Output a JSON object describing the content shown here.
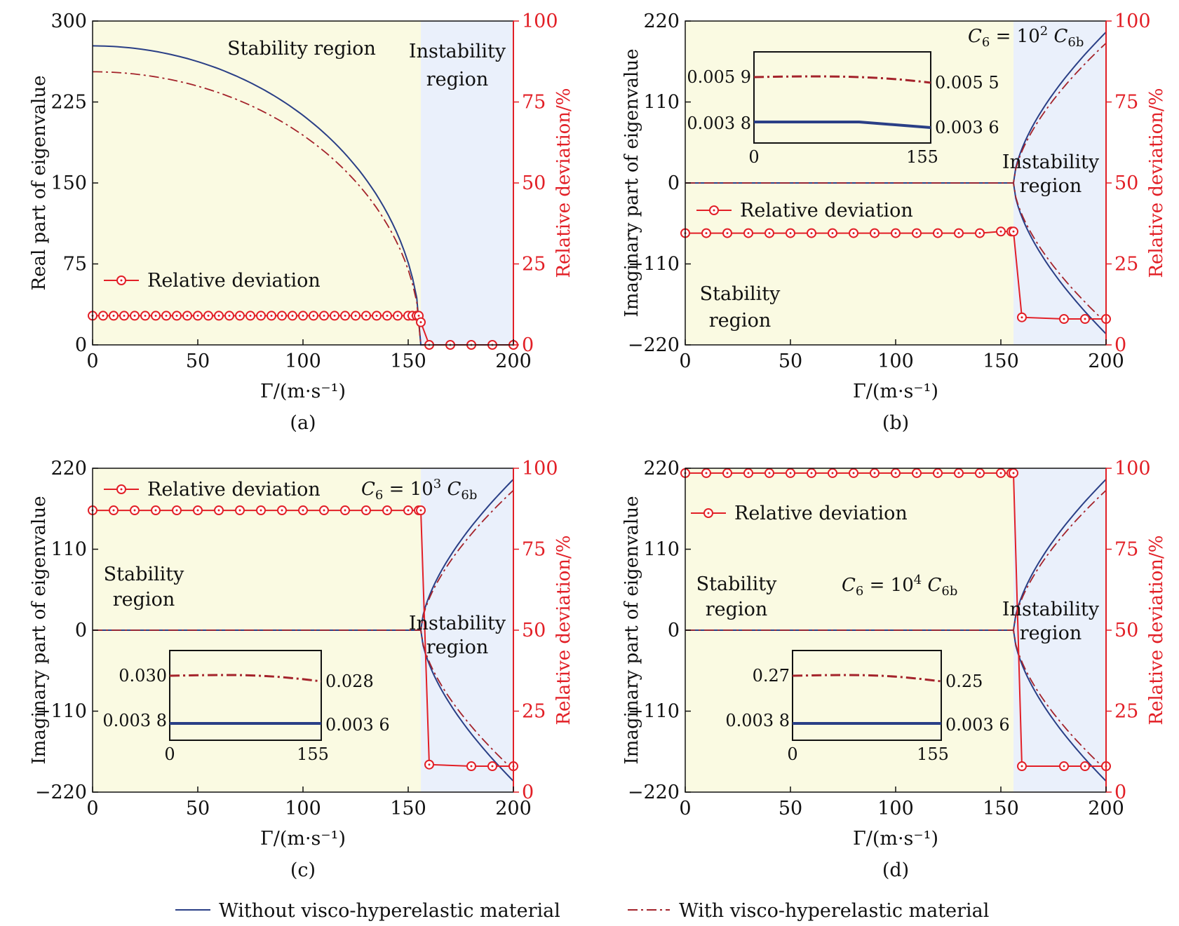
{
  "colors": {
    "stable_bg": "#fafae2",
    "unstable_bg": "#eaf0fb",
    "without": "#2a3f86",
    "with": "#a4232b",
    "deviation": "#e21f26",
    "axis": "#111111"
  },
  "legend": {
    "without_label": "Without visco-hyperelastic material",
    "with_label": "With visco-hyperelastic material"
  },
  "chart_data": [
    {
      "id": "a",
      "type": "line",
      "caption": "(a)",
      "xlabel": "Γ/(m·s⁻¹)",
      "ylabel": "Real part of eigenvalue",
      "ylabel_right": "Relative deviation/%",
      "xlim": [
        0,
        200
      ],
      "ylim": [
        0,
        300
      ],
      "y2lim": [
        0,
        100
      ],
      "xticks": [
        0,
        50,
        100,
        150,
        200
      ],
      "yticks": [
        0,
        75,
        150,
        225,
        300
      ],
      "y2ticks": [
        0,
        25,
        50,
        75,
        100
      ],
      "critical_x": 156,
      "curve_kind": "real",
      "without_peak": 277,
      "with_peak": 253,
      "deviation": {
        "name": "Relative deviation",
        "x": [
          0,
          5,
          10,
          15,
          20,
          25,
          30,
          35,
          40,
          45,
          50,
          55,
          60,
          65,
          70,
          75,
          80,
          85,
          90,
          95,
          100,
          105,
          110,
          115,
          120,
          125,
          130,
          135,
          140,
          145,
          150,
          152,
          154,
          155,
          156,
          160,
          170,
          180,
          190,
          200
        ],
        "y": [
          9,
          9,
          9,
          9,
          9,
          9,
          9,
          9,
          9,
          9,
          9,
          9,
          9,
          9,
          9,
          9,
          9,
          9,
          9,
          9,
          9,
          9,
          9,
          9,
          9,
          9,
          9,
          9,
          9,
          9,
          9,
          9,
          9,
          9,
          7,
          0,
          0,
          0,
          0,
          0
        ]
      },
      "labels": [
        {
          "text": "Stability region"
        },
        {
          "text": "Instability"
        },
        {
          "text": "region"
        }
      ],
      "legend_label": "Relative deviation",
      "legend_pos": "left-middle"
    },
    {
      "id": "b",
      "type": "line",
      "caption": "(b)",
      "xlabel": "Γ/(m·s⁻¹)",
      "ylabel": "Imaginary part of eigenvalue",
      "ylabel_right": "Relative deviation/%",
      "xlim": [
        0,
        200
      ],
      "ylim": [
        -220,
        220
      ],
      "y2lim": [
        0,
        100
      ],
      "xticks": [
        0,
        50,
        100,
        150,
        200
      ],
      "yticks": [
        -220,
        -110,
        0,
        110,
        220
      ],
      "y2ticks": [
        0,
        25,
        50,
        75,
        100
      ],
      "critical_x": 156,
      "curve_kind": "imag",
      "without_end": 205,
      "with_end": 190,
      "annotation": {
        "base": "C",
        "sub": "6",
        "eq": " = 10",
        "sup": "2",
        "base2": " C",
        "sub2": "6b"
      },
      "deviation": {
        "name": "Relative deviation",
        "x": [
          0,
          10,
          20,
          30,
          40,
          50,
          60,
          70,
          80,
          90,
          100,
          110,
          120,
          130,
          140,
          150,
          155,
          156,
          160,
          180,
          190,
          200
        ],
        "y": [
          34.5,
          34.5,
          34.5,
          34.5,
          34.5,
          34.5,
          34.5,
          34.5,
          34.5,
          34.5,
          34.5,
          34.5,
          34.5,
          34.5,
          34.5,
          35,
          35,
          35,
          8.5,
          8,
          8,
          8
        ]
      },
      "labels": [
        {
          "text": "Stability"
        },
        {
          "text": "region"
        },
        {
          "text": "Instability"
        },
        {
          "text": "region"
        }
      ],
      "legend_label": "Relative deviation",
      "legend_pos": "left-middle",
      "inset": {
        "x_ticks": [
          "0",
          "155"
        ],
        "with_left": "0.005 9",
        "with_right": "0.005 5",
        "without_left": "0.003 8",
        "without_right": "0.003 6"
      }
    },
    {
      "id": "c",
      "type": "line",
      "caption": "(c)",
      "xlabel": "Γ/(m·s⁻¹)",
      "ylabel": "Imaginary part of eigenvalue",
      "ylabel_right": "Relative deviation/%",
      "xlim": [
        0,
        200
      ],
      "ylim": [
        -220,
        220
      ],
      "y2lim": [
        0,
        100
      ],
      "xticks": [
        0,
        50,
        100,
        150,
        200
      ],
      "yticks": [
        -220,
        -110,
        0,
        110,
        220
      ],
      "y2ticks": [
        0,
        25,
        50,
        75,
        100
      ],
      "critical_x": 156,
      "curve_kind": "imag",
      "without_end": 205,
      "with_end": 190,
      "annotation": {
        "base": "C",
        "sub": "6",
        "eq": " = 10",
        "sup": "3",
        "base2": " C",
        "sub2": "6b"
      },
      "deviation": {
        "name": "Relative deviation",
        "x": [
          0,
          10,
          20,
          30,
          40,
          50,
          60,
          70,
          80,
          90,
          100,
          110,
          120,
          130,
          140,
          150,
          155,
          156,
          160,
          180,
          190,
          200
        ],
        "y": [
          87,
          87,
          87,
          87,
          87,
          87,
          87,
          87,
          87,
          87,
          87,
          87,
          87,
          87,
          87,
          87,
          87,
          87,
          8.5,
          8,
          8,
          8
        ]
      },
      "labels": [
        {
          "text": "Stability"
        },
        {
          "text": "region"
        },
        {
          "text": "Instability"
        },
        {
          "text": "region"
        }
      ],
      "legend_label": "Relative deviation",
      "legend_pos": "top-left",
      "inset": {
        "x_ticks": [
          "0",
          "155"
        ],
        "with_left": "0.030",
        "with_right": "0.028",
        "without_left": "0.003 8",
        "without_right": "0.003 6"
      }
    },
    {
      "id": "d",
      "type": "line",
      "caption": "(d)",
      "xlabel": "Γ/(m·s⁻¹)",
      "ylabel": "Imaginary part of eigenvalue",
      "ylabel_right": "Relative deviation/%",
      "xlim": [
        0,
        200
      ],
      "ylim": [
        -220,
        220
      ],
      "y2lim": [
        0,
        100
      ],
      "xticks": [
        0,
        50,
        100,
        150,
        200
      ],
      "yticks": [
        -220,
        -110,
        0,
        110,
        220
      ],
      "y2ticks": [
        0,
        25,
        50,
        75,
        100
      ],
      "critical_x": 156,
      "curve_kind": "imag",
      "without_end": 205,
      "with_end": 190,
      "annotation": {
        "base": "C",
        "sub": "6",
        "eq": " = 10",
        "sup": "4",
        "base2": " C",
        "sub2": "6b"
      },
      "deviation": {
        "name": "Relative deviation",
        "x": [
          0,
          10,
          20,
          30,
          40,
          50,
          60,
          70,
          80,
          90,
          100,
          110,
          120,
          130,
          140,
          150,
          155,
          156,
          160,
          180,
          190,
          200
        ],
        "y": [
          98.5,
          98.5,
          98.5,
          98.5,
          98.5,
          98.5,
          98.5,
          98.5,
          98.5,
          98.5,
          98.5,
          98.5,
          98.5,
          98.5,
          98.5,
          98.5,
          98.5,
          98.5,
          8,
          8,
          8,
          8
        ]
      },
      "labels": [
        {
          "text": "Stability"
        },
        {
          "text": "region"
        },
        {
          "text": "Instability"
        },
        {
          "text": "region"
        }
      ],
      "legend_label": "Relative deviation",
      "legend_pos": "top-left",
      "inset": {
        "x_ticks": [
          "0",
          "155"
        ],
        "with_left": "0.27",
        "with_right": "0.25",
        "without_left": "0.003 8",
        "without_right": "0.003 6"
      }
    }
  ]
}
